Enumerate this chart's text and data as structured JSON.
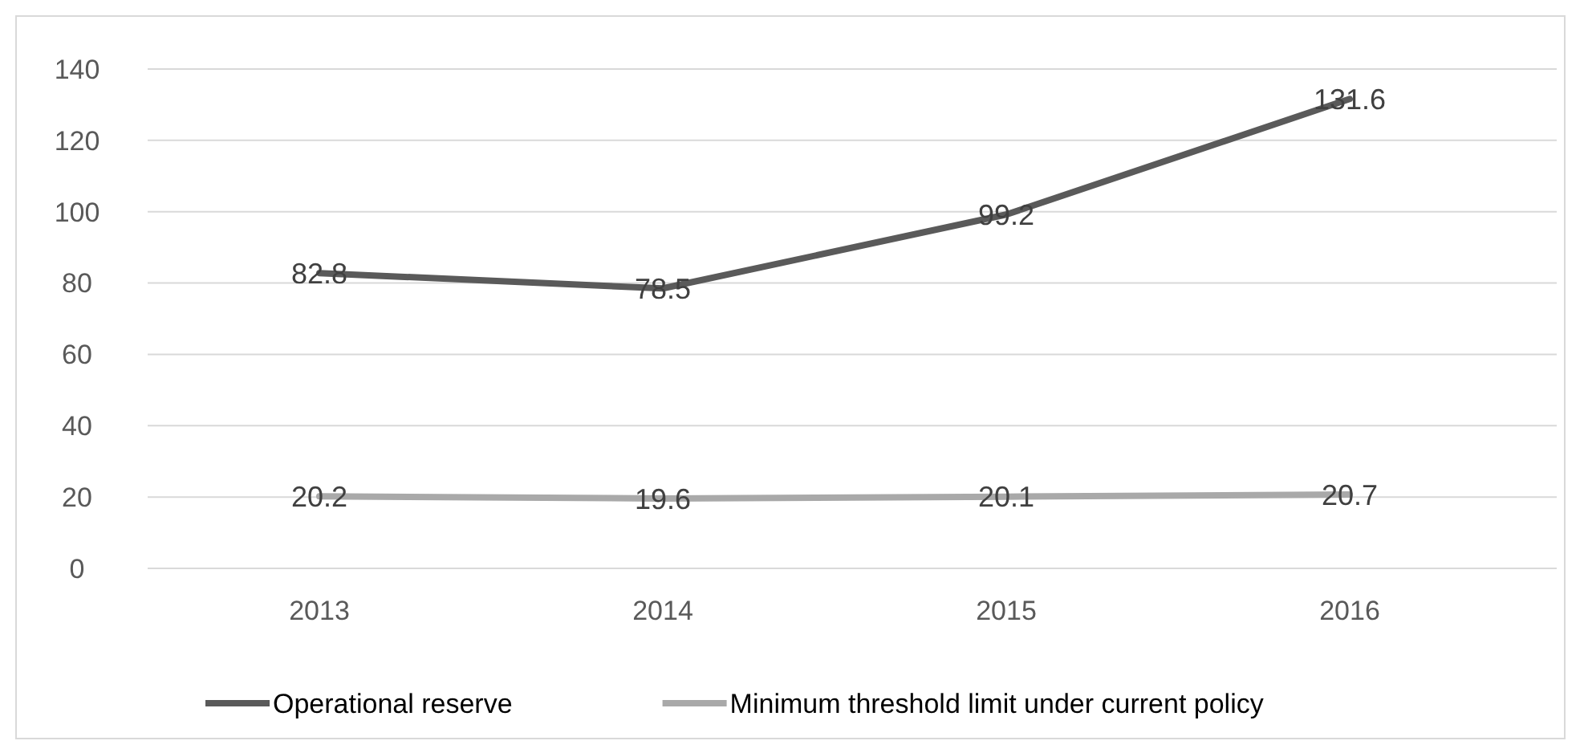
{
  "chart_data": {
    "type": "line",
    "categories": [
      "2013",
      "2014",
      "2015",
      "2016"
    ],
    "series": [
      {
        "name": "Operational reserve",
        "color": "#5a5a5a",
        "values": [
          82.8,
          78.5,
          99.2,
          131.6
        ]
      },
      {
        "name": "Minimum threshold limit under current policy",
        "color": "#a9a9a9",
        "values": [
          20.2,
          19.6,
          20.1,
          20.7
        ]
      }
    ],
    "ylim": [
      0,
      140
    ],
    "yticks": [
      0,
      20,
      40,
      60,
      80,
      100,
      120,
      140
    ],
    "grid": "y",
    "legend": "bottom",
    "data_labels": true,
    "marker": "none",
    "line_style": "solid"
  }
}
